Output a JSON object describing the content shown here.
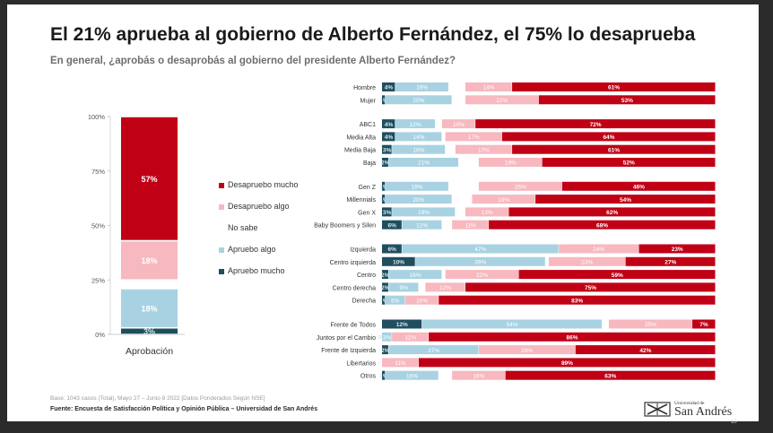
{
  "title": "El 21% aprueba al gobierno de Alberto Fernández, el 75% lo desaprueba",
  "subtitle": "En general, ¿aprobás o desaprobás al gobierno del presidente Alberto Fernández?",
  "footer": {
    "base": "Base: 1043 casos (Total), Mayo 27 – Junio 8 2022 [Datos Ponderados Según NSE]",
    "source": "Fuente: Encuesta de Satisfacción Política y Opinión Pública – Universidad de San Andrés"
  },
  "logo": {
    "top": "Universidad de",
    "name": "San Andrés"
  },
  "page_number": "10",
  "colors": {
    "desapruebo_mucho": "#c00015",
    "desapruebo_algo": "#f7b8bf",
    "no_sabe": "#ffffff",
    "apruebo_algo": "#a8d2e2",
    "apruebo_mucho": "#1f4e5e"
  },
  "chart_data": [
    {
      "type": "bar",
      "stacked": true,
      "categories": [
        "Aprobación"
      ],
      "yticks": [
        "0%",
        "25%",
        "50%",
        "75%",
        "100%"
      ],
      "ylim": [
        0,
        100
      ],
      "series": [
        {
          "name": "Apruebo mucho",
          "values": [
            3
          ],
          "label": "3%"
        },
        {
          "name": "Apruebo algo",
          "values": [
            18
          ],
          "label": "18%"
        },
        {
          "name": "No sabe",
          "values": [
            4
          ],
          "label": ""
        },
        {
          "name": "Desapruebo algo",
          "values": [
            18
          ],
          "label": "18%"
        },
        {
          "name": "Desapruebo mucho",
          "values": [
            57
          ],
          "label": "57%"
        }
      ],
      "legend": [
        "Desapruebo mucho",
        "Desapruebo algo",
        "No sabe",
        "Apruebo algo",
        "Apruebo mucho"
      ],
      "legend_position": "right"
    },
    {
      "type": "bar",
      "orientation": "horizontal",
      "stacked": true,
      "series_order": [
        "Apruebo mucho",
        "Apruebo algo",
        "No sabe",
        "Desapruebo algo",
        "Desapruebo mucho"
      ],
      "groups": [
        {
          "rows": [
            {
              "label": "Hombre",
              "values": [
                4,
                16,
                5,
                14,
                61
              ],
              "labels": [
                "4%",
                "16%",
                "",
                "14%",
                "61%"
              ]
            },
            {
              "label": "Mujer",
              "values": [
                1,
                20,
                4,
                22,
                53
              ],
              "labels": [
                "1%",
                "20%",
                "",
                "22%",
                "53%"
              ]
            }
          ]
        },
        {
          "rows": [
            {
              "label": "ABC1",
              "values": [
                4,
                12,
                2,
                10,
                72
              ],
              "labels": [
                "4%",
                "12%",
                "",
                "10%",
                "72%"
              ]
            },
            {
              "label": "Media Alta",
              "values": [
                4,
                14,
                1,
                17,
                64
              ],
              "labels": [
                "4%",
                "14%",
                "",
                "17%",
                "64%"
              ]
            },
            {
              "label": "Media Baja",
              "values": [
                3,
                16,
                3,
                17,
                61
              ],
              "labels": [
                "3%",
                "16%",
                "",
                "17%",
                "61%"
              ]
            },
            {
              "label": "Baja",
              "values": [
                2,
                21,
                6,
                19,
                52
              ],
              "labels": [
                "2%",
                "21%",
                "",
                "19%",
                "52%"
              ]
            }
          ]
        },
        {
          "rows": [
            {
              "label": "Gen Z",
              "values": [
                1,
                19,
                9,
                25,
                46
              ],
              "labels": [
                "1%",
                "19%",
                "",
                "25%",
                "46%"
              ]
            },
            {
              "label": "Millennials",
              "values": [
                1,
                20,
                6,
                19,
                54
              ],
              "labels": [
                "1%",
                "20%",
                "",
                "19%",
                "54%"
              ]
            },
            {
              "label": "Gen X",
              "values": [
                3,
                19,
                3,
                13,
                62
              ],
              "labels": [
                "3%",
                "19%",
                "",
                "13%",
                "62%"
              ]
            },
            {
              "label": "Baby Boomers y Silen",
              "values": [
                6,
                12,
                3,
                11,
                68
              ],
              "labels": [
                "6%",
                "12%",
                "",
                "11%",
                "68%"
              ]
            }
          ]
        },
        {
          "rows": [
            {
              "label": "Izquierda",
              "values": [
                6,
                47,
                0,
                24,
                23
              ],
              "labels": [
                "6%",
                "47%",
                "",
                "24%",
                "23%"
              ]
            },
            {
              "label": "Centro izquierda",
              "values": [
                10,
                39,
                1,
                23,
                27
              ],
              "labels": [
                "10%",
                "39%",
                "",
                "23%",
                "27%"
              ]
            },
            {
              "label": "Centro",
              "values": [
                2,
                16,
                1,
                22,
                59
              ],
              "labels": [
                "2%",
                "16%",
                "",
                "22%",
                "59%"
              ]
            },
            {
              "label": "Centro derecha",
              "values": [
                2,
                9,
                2,
                12,
                75
              ],
              "labels": [
                "2%",
                "9%",
                "",
                "12%",
                "75%"
              ]
            },
            {
              "label": "Derecha",
              "values": [
                1,
                6,
                0,
                10,
                83
              ],
              "labels": [
                "1%",
                "6%",
                "",
                "10%",
                "83%"
              ]
            }
          ]
        },
        {
          "rows": [
            {
              "label": "Frente de Todos",
              "values": [
                12,
                54,
                2,
                25,
                7
              ],
              "labels": [
                "12%",
                "54%",
                "",
                "25%",
                "7%"
              ]
            },
            {
              "label": "Juntos por el Cambio",
              "values": [
                0,
                3,
                0,
                11,
                86
              ],
              "labels": [
                "0%",
                "3%",
                "",
                "11%",
                "86%"
              ]
            },
            {
              "label": "Frente de Izquierda",
              "values": [
                2,
                27,
                0,
                29,
                42
              ],
              "labels": [
                "2%",
                "27%",
                "",
                "29%",
                "42%"
              ]
            },
            {
              "label": "Libertarios",
              "values": [
                0,
                0,
                0,
                11,
                89
              ],
              "labels": [
                "0%",
                "0%",
                "",
                "11%",
                "89%"
              ]
            },
            {
              "label": "Otros",
              "values": [
                1,
                16,
                4,
                16,
                63
              ],
              "labels": [
                "1%",
                "16%",
                "",
                "16%",
                "63%"
              ]
            }
          ]
        }
      ]
    }
  ]
}
